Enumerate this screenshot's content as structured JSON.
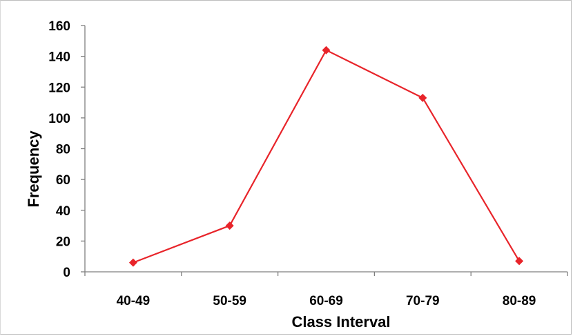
{
  "chart_data": {
    "type": "line",
    "categories": [
      "40-49",
      "50-59",
      "60-69",
      "70-79",
      "80-89"
    ],
    "series": [
      {
        "values": [
          6,
          30,
          144,
          113,
          7
        ]
      }
    ],
    "xlabel": "Class Interval",
    "ylabel": "Frequency",
    "ylim": [
      0,
      160
    ],
    "yticks": [
      "0",
      "20",
      "40",
      "60",
      "80",
      "100",
      "120",
      "140",
      "160"
    ],
    "grid": false,
    "legend": "none",
    "line_color": "#e8242a"
  }
}
